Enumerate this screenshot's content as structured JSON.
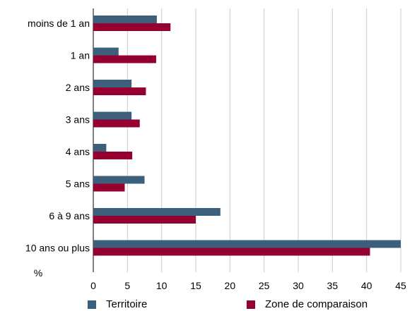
{
  "chart_data": {
    "type": "bar",
    "orientation": "horizontal",
    "categories": [
      "moins de 1 an",
      "1 an",
      "2 ans",
      "3 ans",
      "4 ans",
      "5 ans",
      "6 à 9 ans",
      "10 ans ou plus"
    ],
    "series": [
      {
        "name": "Territoire",
        "values": [
          9.3,
          3.7,
          5.6,
          5.6,
          1.9,
          7.5,
          18.6,
          45.0
        ],
        "color": "#3c5f7c"
      },
      {
        "name": "Zone de comparaison",
        "values": [
          11.3,
          9.2,
          7.7,
          6.8,
          5.7,
          4.6,
          15.0,
          40.5
        ],
        "color": "#960030"
      }
    ],
    "xlim": [
      0,
      45
    ],
    "xticks": [
      0,
      5,
      10,
      15,
      20,
      25,
      30,
      35,
      40,
      45
    ],
    "xlabel": "%",
    "grid": true,
    "legend_position": "bottom"
  }
}
